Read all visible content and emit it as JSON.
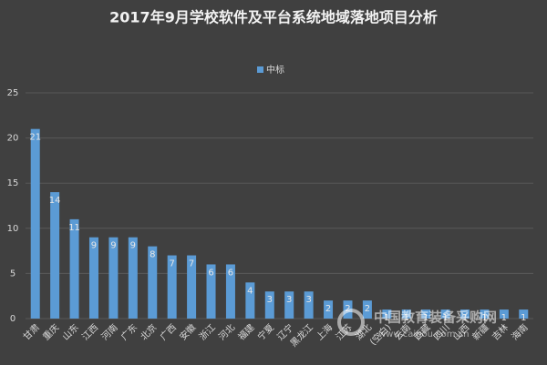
{
  "chart_data": {
    "type": "bar",
    "title": "2017年9月学校软件及平台系统地域落地项目分析",
    "categories": [
      "甘肃",
      "重庆",
      "山东",
      "江西",
      "河南",
      "广东",
      "北京",
      "广西",
      "安徽",
      "浙江",
      "河北",
      "福建",
      "宁夏",
      "辽宁",
      "黑龙江",
      "上海",
      "江苏",
      "湖北",
      "(空白)",
      "云南",
      "西藏",
      "四川",
      "山西",
      "新疆",
      "吉林",
      "海南"
    ],
    "series": [
      {
        "name": "中标",
        "color": "#5b9bd5",
        "values": [
          21,
          14,
          11,
          9,
          9,
          9,
          8,
          7,
          7,
          6,
          6,
          4,
          3,
          3,
          3,
          2,
          2,
          2,
          1,
          1,
          1,
          1,
          1,
          1,
          1,
          1
        ]
      }
    ],
    "ylim": [
      0,
      25
    ],
    "yticks": [
      0,
      5,
      10,
      15,
      20,
      25
    ],
    "grid": true,
    "legend": "top",
    "watermark": {
      "name": "中国教育装备采购网",
      "url": "www.caigou.com.cn"
    }
  }
}
